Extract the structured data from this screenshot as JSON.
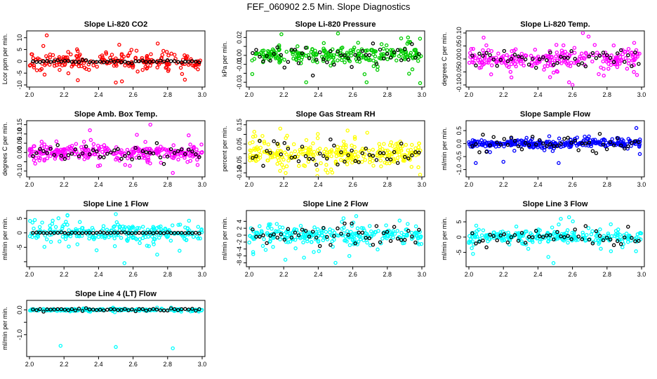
{
  "figure": {
    "title": "FEF_060902  2.5 Min. Slope Diagnostics"
  },
  "chart_data": [
    {
      "type": "scatter",
      "title": "Slope Li-820 CO2",
      "ylabel": "Lcor ppm per min.",
      "color": "#ff0000",
      "xlim": [
        2.0,
        3.0
      ],
      "xticks": [
        "2.0",
        "2.2",
        "2.4",
        "2.6",
        "2.8",
        "3.0"
      ],
      "ylim": [
        -10,
        12
      ],
      "yticks": [
        -10,
        -5,
        0,
        5,
        10
      ],
      "ytick_labels": [
        "-10",
        "-5",
        "0",
        "5",
        "10"
      ],
      "spread": 2.5,
      "n_points": 230,
      "outliers": [
        [
          2.1,
          11
        ],
        [
          2.08,
          6.5
        ],
        [
          2.28,
          -8
        ],
        [
          2.5,
          -9
        ],
        [
          2.62,
          4.5
        ],
        [
          2.52,
          7
        ]
      ],
      "black_spread": 0.4
    },
    {
      "type": "scatter",
      "title": "Slope Li-820 Pressure",
      "ylabel": "kPa per min.",
      "color": "#00cc00",
      "xlim": [
        2.0,
        3.0
      ],
      "xticks": [
        "2.0",
        "2.2",
        "2.4",
        "2.6",
        "2.8",
        "3.0"
      ],
      "ylim": [
        -0.033,
        0.025
      ],
      "yticks": [
        -0.03,
        -0.02,
        -0.01,
        0.0,
        0.01,
        0.02
      ],
      "ytick_labels": [
        "-0.03",
        "",
        "-0.01",
        "0.00",
        "",
        "0.02"
      ],
      "spread": 0.007,
      "n_points": 260,
      "outliers": [
        [
          2.33,
          -0.03
        ],
        [
          2.68,
          -0.03
        ],
        [
          2.99,
          -0.031
        ],
        [
          2.92,
          0.02
        ],
        [
          2.88,
          0.019
        ]
      ],
      "black_spread": 0.008
    },
    {
      "type": "scatter",
      "title": "Slope Li-820 Temp.",
      "ylabel": "degrees C per min.",
      "color": "#ff00ff",
      "xlim": [
        2.0,
        3.0
      ],
      "xticks": [
        "2.0",
        "2.2",
        "2.4",
        "2.6",
        "2.8",
        "3.0"
      ],
      "ylim": [
        -0.1,
        0.1
      ],
      "yticks": [
        -0.1,
        -0.05,
        0.0,
        0.05,
        0.1
      ],
      "ytick_labels": [
        "-0.10",
        "-0.05",
        "0.00",
        "0.05",
        "0.10"
      ],
      "spread": 0.03,
      "n_points": 260,
      "outliers": [
        [
          2.58,
          -0.09
        ],
        [
          2.6,
          -0.1
        ],
        [
          2.66,
          0.1
        ],
        [
          2.47,
          -0.07
        ]
      ],
      "black_spread": 0.025
    },
    {
      "type": "scatter",
      "title": "Slope Amb. Box Temp.",
      "ylabel": "degrees C per min.",
      "color": "#ff00ff",
      "xlim": [
        2.0,
        3.0
      ],
      "xticks": [
        "2.0",
        "2.2",
        "2.4",
        "2.6",
        "2.8",
        "3.0"
      ],
      "ylim": [
        -0.12,
        0.16
      ],
      "yticks": [
        -0.1,
        -0.05,
        0.0,
        0.05,
        0.1,
        0.15
      ],
      "ytick_labels": [
        "-0.10",
        "",
        "0.00",
        "0.05",
        "0.10",
        "0.15"
      ],
      "spread": 0.03,
      "n_points": 290,
      "outliers": [
        [
          2.7,
          0.15
        ],
        [
          2.83,
          -0.11
        ],
        [
          2.35,
          0.12
        ]
      ],
      "black_spread": 0.03
    },
    {
      "type": "scatter",
      "title": "Slope Gas Stream RH",
      "ylabel": "percent per min.",
      "color": "#ffff00",
      "xlim": [
        2.0,
        3.0
      ],
      "xticks": [
        "2.0",
        "2.2",
        "2.4",
        "2.6",
        "2.8",
        "3.0"
      ],
      "ylim": [
        -0.11,
        0.16
      ],
      "yticks": [
        -0.1,
        -0.05,
        0.0,
        0.05,
        0.1,
        0.15
      ],
      "ytick_labels": [
        "-0.10",
        "-0.05",
        "",
        "0.05",
        "",
        "0.15"
      ],
      "spread": 0.045,
      "n_points": 300,
      "outliers": [
        [
          2.18,
          0.13
        ],
        [
          2.99,
          -0.11
        ],
        [
          2.57,
          0.12
        ]
      ],
      "black_spread": 0.05
    },
    {
      "type": "scatter",
      "title": "Slope Sample Flow",
      "ylabel": "ml/min per min.",
      "color": "#0000ff",
      "xlim": [
        2.0,
        3.0
      ],
      "xticks": [
        "2.0",
        "2.2",
        "2.4",
        "2.6",
        "2.8",
        "3.0"
      ],
      "ylim": [
        -1.2,
        0.8
      ],
      "yticks": [
        -1.0,
        -0.5,
        0.0,
        0.5
      ],
      "ytick_labels": [
        "-1.0",
        "-0.5",
        "0.0",
        "0.5"
      ],
      "spread": 0.12,
      "n_points": 300,
      "outliers": [
        [
          2.04,
          -0.75
        ],
        [
          2.2,
          -0.7
        ],
        [
          2.52,
          -0.75
        ],
        [
          2.97,
          0.6
        ],
        [
          2.99,
          -0.4
        ]
      ],
      "black_spread": 0.25
    },
    {
      "type": "scatter",
      "title": "Slope Line 1 Flow",
      "ylabel": "ml/min per min.",
      "color": "#00ffff",
      "xlim": [
        2.0,
        3.0
      ],
      "xticks": [
        "2.0",
        "2.2",
        "2.4",
        "2.6",
        "2.8",
        "3.0"
      ],
      "ylim": [
        -11,
        7
      ],
      "yticks": [
        -10,
        -5,
        0,
        5
      ],
      "ytick_labels": [
        "",
        "-5",
        "0",
        "5"
      ],
      "spread": 2.5,
      "n_points": 260,
      "outliers": [
        [
          2.55,
          -10.5
        ],
        [
          2.5,
          6.5
        ],
        [
          2.22,
          6
        ]
      ],
      "black_spread": 0.15
    },
    {
      "type": "scatter",
      "title": "Slope Line 2 Flow",
      "ylabel": "ml/min per min.",
      "color": "#00ffff",
      "xlim": [
        2.0,
        3.0
      ],
      "xticks": [
        "2.0",
        "2.2",
        "2.4",
        "2.6",
        "2.8",
        "3.0"
      ],
      "ylim": [
        -8.5,
        6.5
      ],
      "yticks": [
        -8,
        -6,
        -4,
        -2,
        0,
        2,
        4
      ],
      "ytick_labels": [
        "-8",
        "-6",
        "-4",
        "-2",
        "0",
        "2",
        "4"
      ],
      "spread": 1.8,
      "n_points": 270,
      "outliers": [
        [
          2.5,
          -8
        ],
        [
          2.62,
          5.5
        ],
        [
          2.58,
          -6
        ]
      ],
      "black_spread": 2.0
    },
    {
      "type": "scatter",
      "title": "Slope Line 3 Flow",
      "ylabel": "ml/min per min.",
      "color": "#00ffff",
      "xlim": [
        2.0,
        3.0
      ],
      "xticks": [
        "2.0",
        "2.2",
        "2.4",
        "2.6",
        "2.8",
        "3.0"
      ],
      "ylim": [
        -9,
        8
      ],
      "yticks": [
        -5,
        0,
        5
      ],
      "ytick_labels": [
        "-5",
        "0",
        "5"
      ],
      "spread": 1.8,
      "n_points": 260,
      "outliers": [
        [
          2.49,
          -8.5
        ],
        [
          2.58,
          6.5
        ],
        [
          2.46,
          -6.5
        ]
      ],
      "black_spread": 2.0
    },
    {
      "type": "scatter",
      "title": "Slope Line 4 (LT) Flow",
      "ylabel": "ml/min per min.",
      "color": "#00ffff",
      "xlim": [
        2.0,
        3.0
      ],
      "xticks": [
        "2.0",
        "2.2",
        "2.4",
        "2.6",
        "2.8",
        "3.0"
      ],
      "ylim": [
        -1.8,
        0.3
      ],
      "yticks": [
        -1.0,
        -0.5,
        0.0
      ],
      "ytick_labels": [
        "-1.0",
        "",
        "0.0"
      ],
      "spread": 0.03,
      "n_points": 240,
      "outliers": [
        [
          2.18,
          -1.45
        ],
        [
          2.5,
          -1.5
        ],
        [
          2.83,
          -1.55
        ]
      ],
      "black_spread": 0.05
    }
  ]
}
